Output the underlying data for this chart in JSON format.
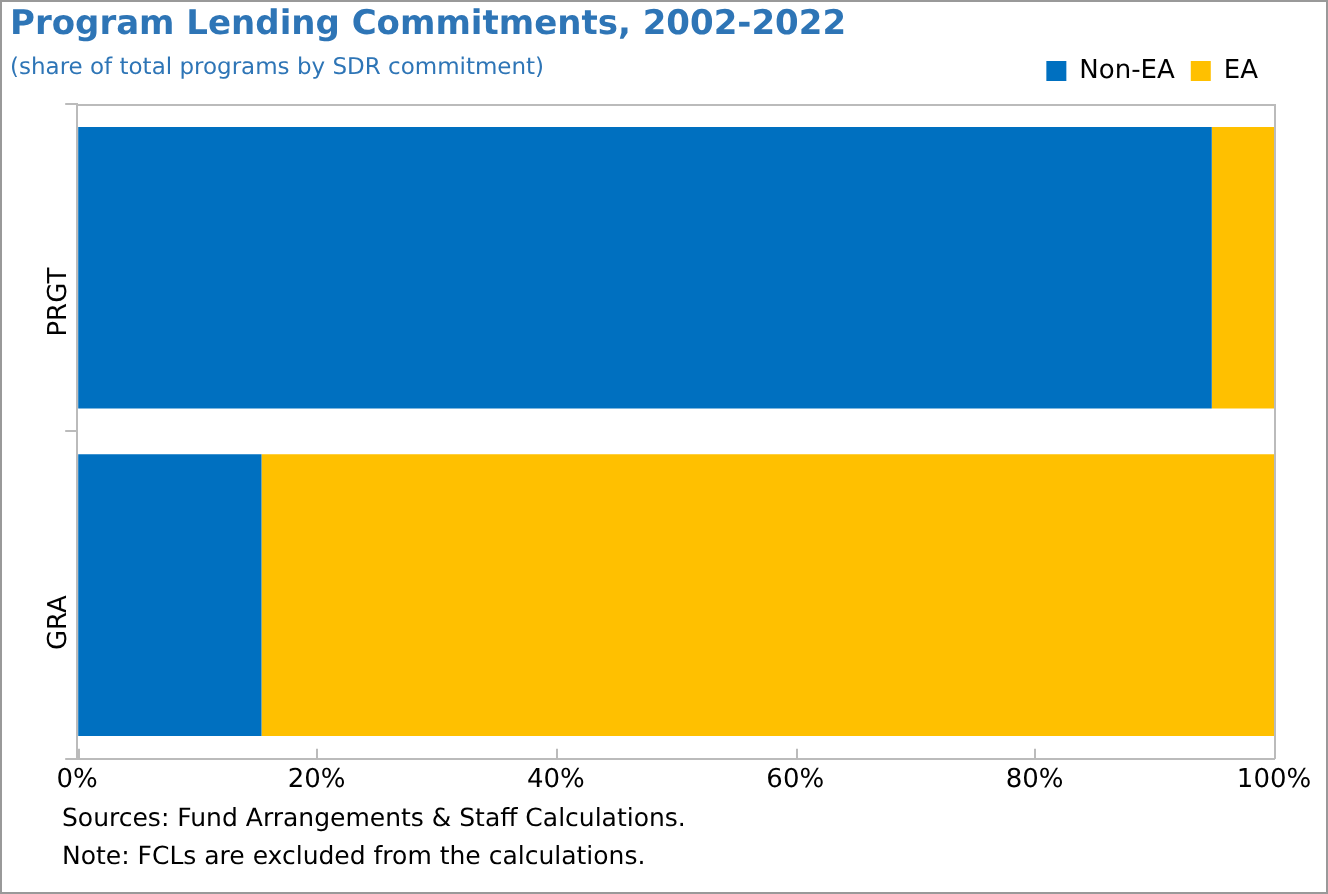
{
  "chart_data": {
    "type": "bar",
    "title": "Program Lending Commitments, 2002-2022",
    "subtitle": "(share of total programs by SDR commitment)",
    "orientation": "horizontal",
    "stacked": true,
    "categories": [
      "PRGT",
      "GRA"
    ],
    "series": [
      {
        "name": "Non-EA",
        "color": "#0070c0",
        "values": [
          94.8,
          15.4
        ]
      },
      {
        "name": "EA",
        "color": "#ffc000",
        "values": [
          5.2,
          84.6
        ]
      }
    ],
    "xlim": [
      0,
      100
    ],
    "xticks": [
      {
        "value": 0,
        "label": "0%"
      },
      {
        "value": 20,
        "label": "20%"
      },
      {
        "value": 40,
        "label": "40%"
      },
      {
        "value": 60,
        "label": "60%"
      },
      {
        "value": 80,
        "label": "80%"
      },
      {
        "value": 100,
        "label": "100%"
      }
    ],
    "grid": false,
    "legend": "top right",
    "annotations": [
      "Sources: Fund Arrangements & Staff Calculations.",
      "Note: FCLs are excluded from the calculations."
    ]
  }
}
